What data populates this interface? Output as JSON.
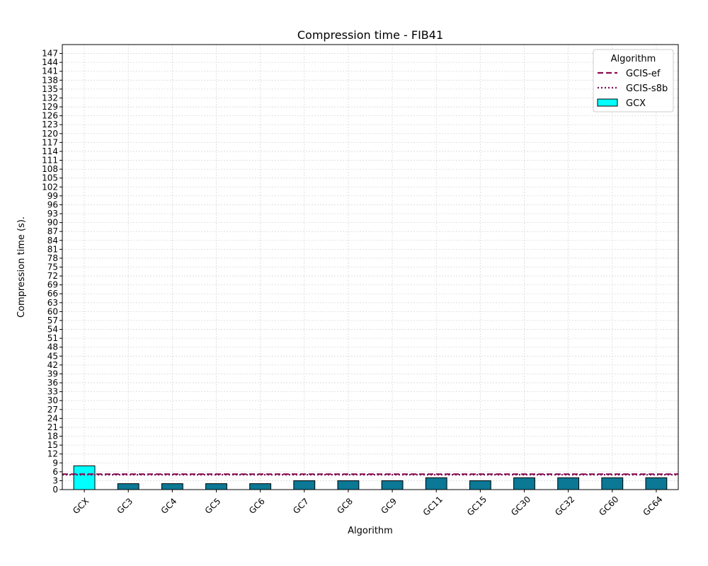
{
  "chart_data": {
    "type": "bar",
    "title": "Compression time -  FIB41",
    "xlabel": "Algorithm",
    "ylabel": "Compression time (s).",
    "categories": [
      "GCX",
      "GC3",
      "GC4",
      "GC5",
      "GC6",
      "GC7",
      "GC8",
      "GC9",
      "GC11",
      "GC15",
      "GC30",
      "GC32",
      "GC60",
      "GC64"
    ],
    "values": [
      8,
      2,
      2,
      2,
      2,
      3,
      3,
      3,
      4,
      3,
      4,
      4,
      4,
      4
    ],
    "ylim": [
      0,
      150
    ],
    "ytick_step": 3,
    "grid": true,
    "highlight_color": "#00ffff",
    "bar_color": "#0b7895",
    "reference_lines": [
      {
        "name": "GCIS-ef",
        "value": 5.2,
        "style": "dashed",
        "color": "#8b0a50"
      },
      {
        "name": "GCIS-s8b",
        "value": 5.0,
        "style": "dotted",
        "color": "#7b1055"
      }
    ],
    "legend": {
      "title": "Algorithm",
      "position": "top-right",
      "entries": [
        {
          "label": "GCIS-ef",
          "kind": "dashed-line",
          "color": "#8b0a50"
        },
        {
          "label": "GCIS-s8b",
          "kind": "dotted-line",
          "color": "#7b1055"
        },
        {
          "label": "GCX",
          "kind": "patch",
          "color": "#00ffff"
        }
      ]
    }
  }
}
